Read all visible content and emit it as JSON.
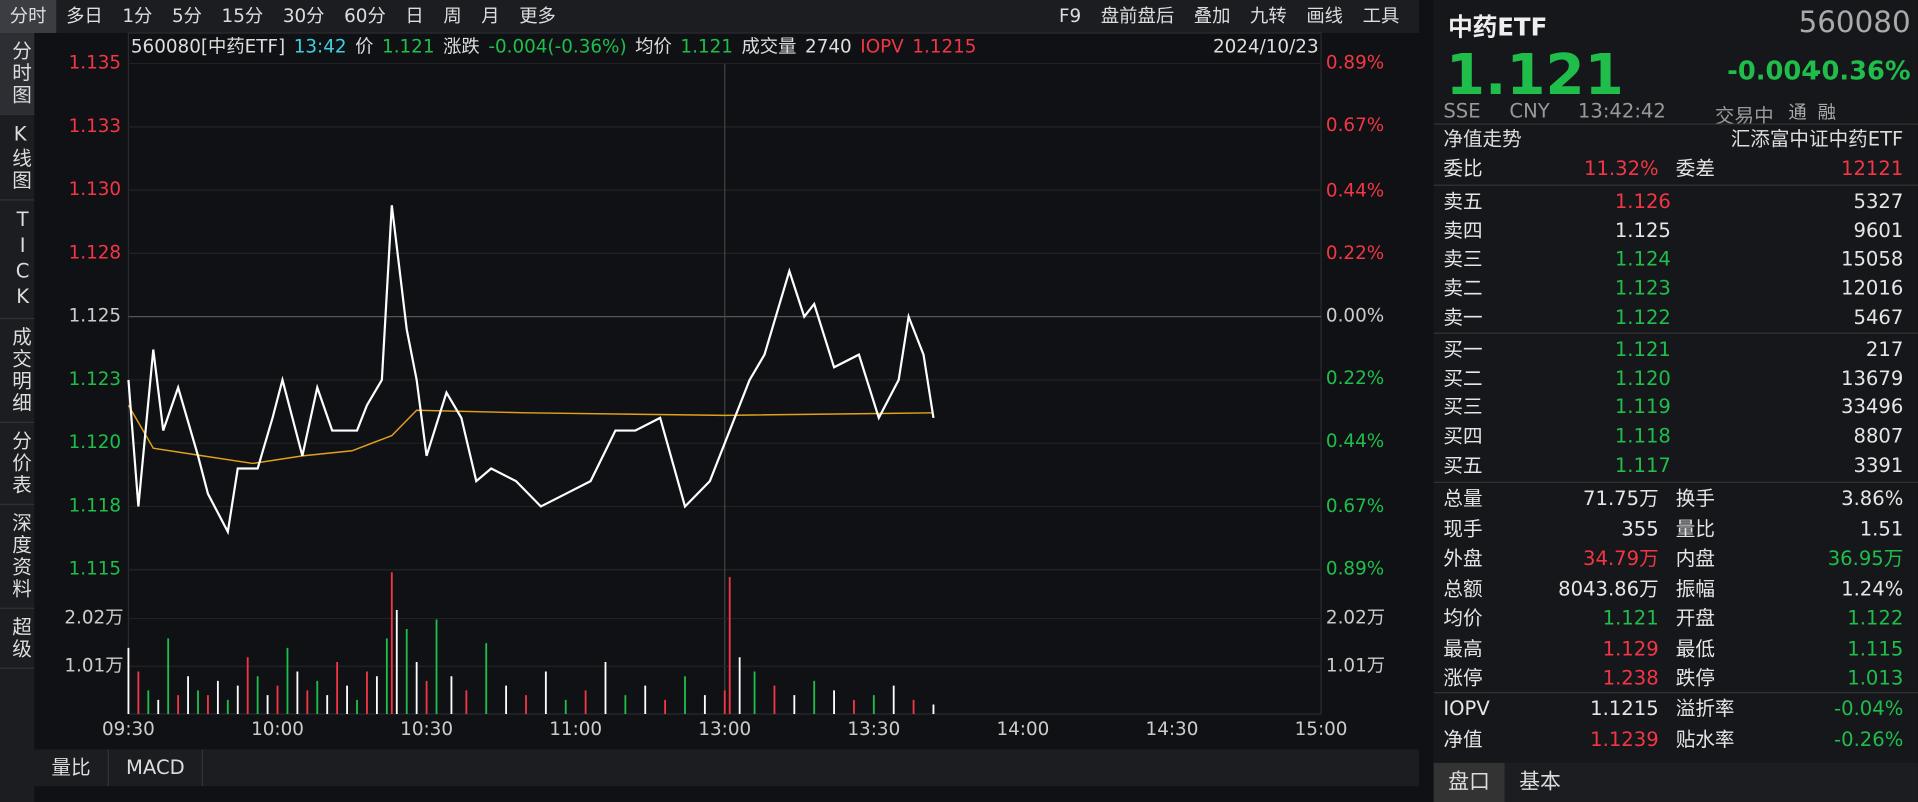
{
  "toolbar": {
    "tabs": [
      "分时",
      "多日",
      "1分",
      "5分",
      "15分",
      "30分",
      "60分",
      "日",
      "周",
      "月",
      "更多"
    ],
    "tools": [
      "F9",
      "盘前盘后",
      "叠加",
      "九转",
      "画线",
      "工具"
    ]
  },
  "sidebar": [
    "分时图",
    "K线图",
    "TICK",
    "成交明细",
    "分价表",
    "深度资料",
    "超级"
  ],
  "info": {
    "code": "560080[中药ETF]",
    "time": "13:42",
    "price_label": "价",
    "price": "1.121",
    "change_label": "涨跌",
    "change": "-0.004(-0.36%)",
    "avg_label": "均价",
    "avg": "1.121",
    "vol_label": "成交量",
    "vol": "2740",
    "iopv_label": "IOPV",
    "iopv": "1.1215",
    "date": "2024/10/23"
  },
  "bottom_tabs": [
    "量比",
    "MACD"
  ],
  "chart_data": {
    "type": "line",
    "xlim": [
      0,
      240
    ],
    "xticks": [
      {
        "value": 0,
        "label": "09:30"
      },
      {
        "value": 30,
        "label": "10:00"
      },
      {
        "value": 60,
        "label": "10:30"
      },
      {
        "value": 90,
        "label": "11:00"
      },
      {
        "value": 120,
        "label": "13:00"
      },
      {
        "value": 150,
        "label": "13:30"
      },
      {
        "value": 180,
        "label": "14:00"
      },
      {
        "value": 210,
        "label": "14:30"
      },
      {
        "value": 240,
        "label": "15:00"
      }
    ],
    "ylim": [
      1.115,
      1.135
    ],
    "yticks": [
      {
        "value": 1.135,
        "label": "1.135"
      },
      {
        "value": 1.1325,
        "label": "1.133"
      },
      {
        "value": 1.13,
        "label": "1.130"
      },
      {
        "value": 1.1275,
        "label": "1.128"
      },
      {
        "value": 1.125,
        "label": "1.125"
      },
      {
        "value": 1.1225,
        "label": "1.123"
      },
      {
        "value": 1.12,
        "label": "1.120"
      },
      {
        "value": 1.1175,
        "label": "1.118"
      },
      {
        "value": 1.115,
        "label": "1.115"
      }
    ],
    "y2lim": [
      -0.89,
      0.89
    ],
    "y2ticks": [
      {
        "value": 0.89,
        "label": "0.89%"
      },
      {
        "value": 0.67,
        "label": "0.67%"
      },
      {
        "value": 0.44,
        "label": "0.44%"
      },
      {
        "value": 0.22,
        "label": "0.22%"
      },
      {
        "value": 0,
        "label": "0.00%"
      },
      {
        "value": -0.22,
        "label": "0.22%"
      },
      {
        "value": -0.44,
        "label": "0.44%"
      },
      {
        "value": -0.67,
        "label": "0.67%"
      },
      {
        "value": -0.89,
        "label": "0.89%"
      }
    ],
    "price": {
      "color": "#ffffff",
      "x": [
        0,
        2,
        5,
        7,
        10,
        14,
        16,
        20,
        22,
        26,
        29,
        31,
        35,
        38,
        41,
        46,
        48,
        51,
        53,
        56,
        58,
        60,
        64,
        67,
        70,
        73,
        78,
        83,
        88,
        93,
        98,
        102,
        107,
        112,
        117,
        121,
        125,
        128,
        133,
        136,
        138,
        142,
        147,
        151,
        155,
        157,
        160,
        162
      ],
      "values": [
        1.1225,
        1.1175,
        1.1237,
        1.1205,
        1.1222,
        1.1195,
        1.118,
        1.1165,
        1.119,
        1.119,
        1.121,
        1.1225,
        1.1195,
        1.1222,
        1.1205,
        1.1205,
        1.1215,
        1.1225,
        1.1294,
        1.1245,
        1.1225,
        1.1195,
        1.122,
        1.121,
        1.1185,
        1.119,
        1.1185,
        1.1175,
        1.118,
        1.1185,
        1.1205,
        1.1205,
        1.121,
        1.1175,
        1.1185,
        1.1205,
        1.1225,
        1.1235,
        1.1268,
        1.125,
        1.1255,
        1.123,
        1.1235,
        1.121,
        1.1225,
        1.125,
        1.1235,
        1.121
      ]
    },
    "avg": {
      "color": "#e0a21b",
      "x": [
        0,
        5,
        15,
        25,
        35,
        45,
        53,
        58,
        80,
        120,
        162
      ],
      "values": [
        1.1215,
        1.1198,
        1.1195,
        1.1192,
        1.1195,
        1.1197,
        1.1203,
        1.1213,
        1.1212,
        1.1211,
        1.1212
      ]
    },
    "volume": {
      "ylim": [
        0,
        29500
      ],
      "yticks": [
        {
          "value": 20200,
          "label": "2.02万"
        },
        {
          "value": 10100,
          "label": "1.01万"
        }
      ],
      "x": [
        0,
        2,
        4,
        6,
        8,
        10,
        12,
        14,
        16,
        18,
        20,
        22,
        24,
        26,
        28,
        30,
        32,
        34,
        36,
        38,
        40,
        42,
        44,
        46,
        48,
        50,
        52,
        53,
        54,
        56,
        58,
        60,
        62,
        65,
        68,
        72,
        76,
        80,
        84,
        88,
        92,
        96,
        100,
        104,
        108,
        112,
        116,
        120,
        121,
        123,
        126,
        130,
        134,
        138,
        142,
        146,
        150,
        154,
        158,
        162
      ],
      "values": [
        14000,
        9000,
        5000,
        3000,
        16000,
        4000,
        8000,
        5000,
        4000,
        7000,
        3000,
        6000,
        12000,
        8000,
        4000,
        6000,
        14000,
        9000,
        5000,
        7000,
        4000,
        11000,
        6000,
        3000,
        9000,
        8000,
        16000,
        30000,
        22000,
        18000,
        11000,
        7000,
        20000,
        8000,
        5000,
        15000,
        6000,
        4000,
        9000,
        3000,
        5000,
        11000,
        4000,
        6000,
        3000,
        8000,
        4000,
        5000,
        29000,
        12000,
        9000,
        6000,
        4000,
        7000,
        5000,
        3000,
        4000,
        6000,
        3000,
        2000
      ],
      "colors": [
        "#ffffff",
        "#f23645",
        "#1fbe4b",
        "#ffffff",
        "#1fbe4b",
        "#f23645",
        "#ffffff",
        "#1fbe4b",
        "#f23645",
        "#ffffff",
        "#1fbe4b",
        "#ffffff",
        "#f23645",
        "#1fbe4b",
        "#ffffff",
        "#f23645",
        "#1fbe4b",
        "#ffffff",
        "#f23645",
        "#1fbe4b",
        "#ffffff",
        "#f23645",
        "#ffffff",
        "#1fbe4b",
        "#f23645",
        "#ffffff",
        "#1fbe4b",
        "#f23645",
        "#ffffff",
        "#1fbe4b",
        "#ffffff",
        "#f23645",
        "#1fbe4b",
        "#ffffff",
        "#f23645",
        "#1fbe4b",
        "#ffffff",
        "#f23645",
        "#ffffff",
        "#1fbe4b",
        "#f23645",
        "#ffffff",
        "#1fbe4b",
        "#ffffff",
        "#f23645",
        "#1fbe4b",
        "#ffffff",
        "#f23645",
        "#f23645",
        "#ffffff",
        "#1fbe4b",
        "#f23645",
        "#ffffff",
        "#1fbe4b",
        "#ffffff",
        "#f23645",
        "#1fbe4b",
        "#ffffff",
        "#f23645",
        "#ffffff"
      ]
    }
  },
  "quote": {
    "name": "中药ETF",
    "code": "560080",
    "price": "1.121",
    "change": "-0.004",
    "pct": "-0.36%",
    "meta": [
      "SSE",
      "CNY",
      "13:42:42",
      "交易中"
    ],
    "flags": [
      "通",
      "融"
    ],
    "nav_label": "净值走势",
    "fund": "汇添富中证中药ETF",
    "weibi": [
      "委比",
      "11.32%",
      "委差",
      "12121"
    ],
    "asks": [
      [
        "卖五",
        "1.126",
        "5327"
      ],
      [
        "卖四",
        "1.125",
        "9601"
      ],
      [
        "卖三",
        "1.124",
        "15058"
      ],
      [
        "卖二",
        "1.123",
        "12016"
      ],
      [
        "卖一",
        "1.122",
        "5467"
      ]
    ],
    "ask_tones": [
      "r",
      "w",
      "g",
      "g",
      "g"
    ],
    "bids": [
      [
        "买一",
        "1.121",
        "217"
      ],
      [
        "买二",
        "1.120",
        "13679"
      ],
      [
        "买三",
        "1.119",
        "33496"
      ],
      [
        "买四",
        "1.118",
        "8807"
      ],
      [
        "买五",
        "1.117",
        "3391"
      ]
    ],
    "stats": [
      [
        "总量",
        "71.75万",
        "换手",
        "3.86%"
      ],
      [
        "现手",
        "355",
        "量比",
        "1.51"
      ],
      [
        "外盘",
        "34.79万",
        "内盘",
        "36.95万"
      ],
      [
        "总额",
        "8043.86万",
        "振幅",
        "1.24%"
      ],
      [
        "均价",
        "1.121",
        "开盘",
        "1.122"
      ],
      [
        "最高",
        "1.129",
        "最低",
        "1.115"
      ],
      [
        "涨停",
        "1.238",
        "跌停",
        "1.013"
      ]
    ],
    "stat_tones": [
      [
        "w",
        "w"
      ],
      [
        "w",
        "w"
      ],
      [
        "r",
        "g"
      ],
      [
        "w",
        "w"
      ],
      [
        "g",
        "g"
      ],
      [
        "r",
        "g"
      ],
      [
        "r",
        "g"
      ]
    ],
    "extra": [
      [
        "IOPV",
        "1.1215",
        "溢折率",
        "-0.04%"
      ],
      [
        "净值",
        "1.1239",
        "贴水率",
        "-0.26%"
      ]
    ],
    "extra_tones": [
      [
        "w",
        "g"
      ],
      [
        "r",
        "g"
      ]
    ],
    "tabs": [
      "盘口",
      "基本"
    ]
  }
}
